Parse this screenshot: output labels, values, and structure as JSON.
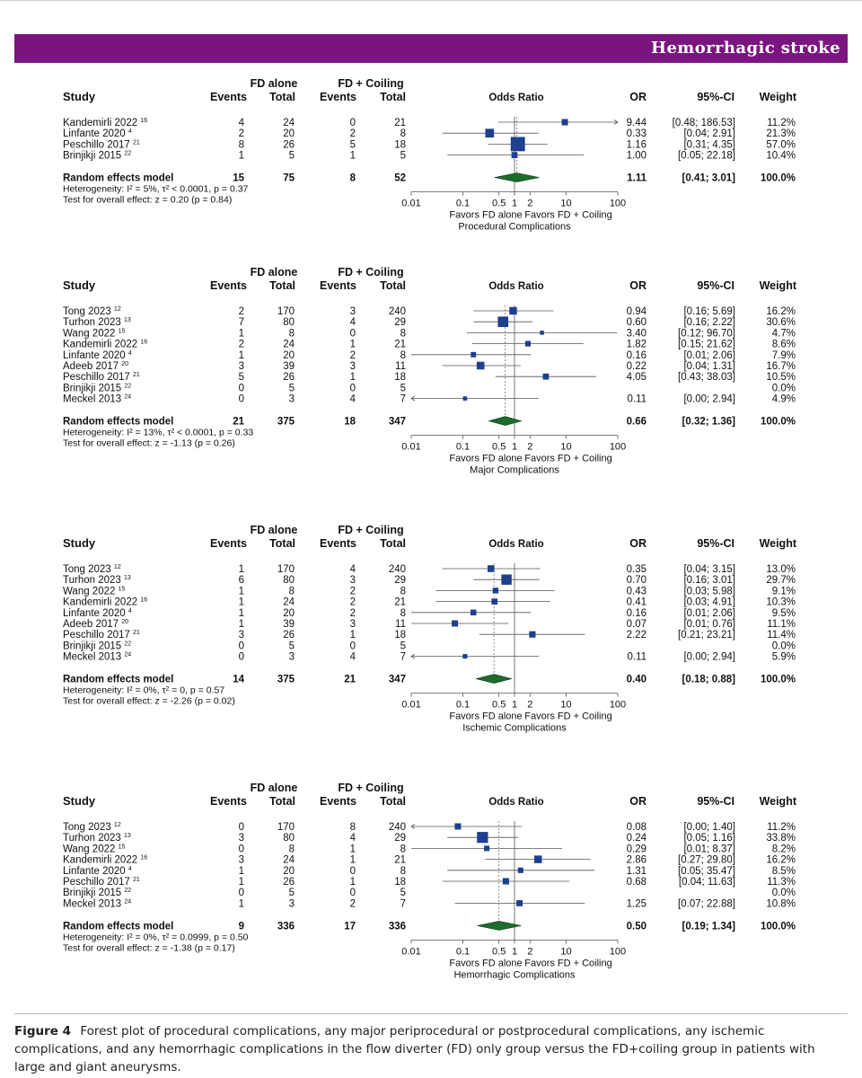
{
  "banner": {
    "title": "Hemorrhagic stroke"
  },
  "caption": {
    "label": "Figure 4",
    "text": "Forest plot of procedural complications, any major periprocedural or postprocedural complications, any ischemic complications, and any hemorrhagic complications in the flow diverter (FD) only group versus the FD+coiling group in patients with large and giant aneurysms."
  },
  "headers": {
    "study": "Study",
    "group_a": "FD alone",
    "group_b": "FD + Coiling",
    "events": "Events",
    "total": "Total",
    "odds_ratio": "Odds Ratio",
    "or": "OR",
    "ci": "95%-CI",
    "weight": "Weight",
    "favors_left": "Favors FD alone",
    "favors_right": "Favors FD + Coiling"
  },
  "colors": {
    "square": "#1f3f8f",
    "diamond": "#1e6b2e",
    "banner": "#7a1580"
  },
  "chart_data": [
    {
      "type": "forest",
      "title": "Procedural Complications",
      "xscale": "log",
      "xlim": [
        0.01,
        100
      ],
      "ticks": [
        "0.01",
        "0.1",
        "0.5",
        "1",
        "2",
        "10",
        "100"
      ],
      "studies": [
        {
          "name": "Kandemirli 2022",
          "ref": "16",
          "e1": 4,
          "t1": 24,
          "e2": 0,
          "t2": 21,
          "or": 9.44,
          "lo": 0.48,
          "hi": 186.53,
          "or_text": "9.44",
          "ci_text": "[0.48; 186.53]",
          "weight": "11.2%"
        },
        {
          "name": "Linfante 2020",
          "ref": "4",
          "e1": 2,
          "t1": 20,
          "e2": 2,
          "t2": 8,
          "or": 0.33,
          "lo": 0.04,
          "hi": 2.91,
          "or_text": "0.33",
          "ci_text": "[0.04;  2.91]",
          "weight": "21.3%"
        },
        {
          "name": "Peschillo 2017",
          "ref": "21",
          "e1": 8,
          "t1": 26,
          "e2": 5,
          "t2": 18,
          "or": 1.16,
          "lo": 0.31,
          "hi": 4.35,
          "or_text": "1.16",
          "ci_text": "[0.31;  4.35]",
          "weight": "57.0%"
        },
        {
          "name": "Brinjikji 2015",
          "ref": "22",
          "e1": 1,
          "t1": 5,
          "e2": 1,
          "t2": 5,
          "or": 1.0,
          "lo": 0.05,
          "hi": 22.18,
          "or_text": "1.00",
          "ci_text": "[0.05; 22.18]",
          "weight": "10.4%"
        }
      ],
      "pooled": {
        "label": "Random effects model",
        "e1": "15",
        "t1": "75",
        "e2": "8",
        "t2": "52",
        "or": 1.11,
        "lo": 0.41,
        "hi": 3.01,
        "or_text": "1.11",
        "ci_text": "[0.41;  3.01]",
        "weight": "100.0%"
      },
      "heterogeneity": "Heterogeneity: I² = 5%, τ² < 0.0001, p = 0.37",
      "overall": "Test for overall effect: z = 0.20 (p = 0.84)"
    },
    {
      "type": "forest",
      "title": "Major Complications",
      "xscale": "log",
      "xlim": [
        0.01,
        100
      ],
      "ticks": [
        "0.01",
        "0.1",
        "0.5",
        "1",
        "2",
        "10",
        "100"
      ],
      "studies": [
        {
          "name": "Tong 2023",
          "ref": "12",
          "e1": 2,
          "t1": 170,
          "e2": 3,
          "t2": 240,
          "or": 0.94,
          "lo": 0.16,
          "hi": 5.69,
          "or_text": "0.94",
          "ci_text": "[0.16;  5.69]",
          "weight": "16.2%"
        },
        {
          "name": "Turhon 2023",
          "ref": "13",
          "e1": 7,
          "t1": 80,
          "e2": 4,
          "t2": 29,
          "or": 0.6,
          "lo": 0.16,
          "hi": 2.22,
          "or_text": "0.60",
          "ci_text": "[0.16;  2.22]",
          "weight": "30.6%"
        },
        {
          "name": "Wang 2022",
          "ref": "15",
          "e1": 1,
          "t1": 8,
          "e2": 0,
          "t2": 8,
          "or": 3.4,
          "lo": 0.12,
          "hi": 96.7,
          "or_text": "3.40",
          "ci_text": "[0.12; 96.70]",
          "weight": "4.7%"
        },
        {
          "name": "Kandemirli 2022",
          "ref": "16",
          "e1": 2,
          "t1": 24,
          "e2": 1,
          "t2": 21,
          "or": 1.82,
          "lo": 0.15,
          "hi": 21.62,
          "or_text": "1.82",
          "ci_text": "[0.15; 21.62]",
          "weight": "8.6%"
        },
        {
          "name": "Linfante 2020",
          "ref": "4",
          "e1": 1,
          "t1": 20,
          "e2": 2,
          "t2": 8,
          "or": 0.16,
          "lo": 0.01,
          "hi": 2.06,
          "or_text": "0.16",
          "ci_text": "[0.01;  2.06]",
          "weight": "7.9%"
        },
        {
          "name": "Adeeb 2017",
          "ref": "20",
          "e1": 3,
          "t1": 39,
          "e2": 3,
          "t2": 11,
          "or": 0.22,
          "lo": 0.04,
          "hi": 1.31,
          "or_text": "0.22",
          "ci_text": "[0.04;  1.31]",
          "weight": "16.7%"
        },
        {
          "name": "Peschillo 2017",
          "ref": "21",
          "e1": 5,
          "t1": 26,
          "e2": 1,
          "t2": 18,
          "or": 4.05,
          "lo": 0.43,
          "hi": 38.03,
          "or_text": "4.05",
          "ci_text": "[0.43; 38.03]",
          "weight": "10.5%"
        },
        {
          "name": "Brinjikji 2015",
          "ref": "22",
          "e1": 0,
          "t1": 5,
          "e2": 0,
          "t2": 5,
          "or": null,
          "lo": null,
          "hi": null,
          "or_text": "",
          "ci_text": "",
          "weight": "0.0%"
        },
        {
          "name": "Meckel 2013",
          "ref": "24",
          "e1": 0,
          "t1": 3,
          "e2": 4,
          "t2": 7,
          "or": 0.11,
          "lo": 0.001,
          "hi": 2.94,
          "or_text": "0.11",
          "ci_text": "[0.00;  2.94]",
          "weight": "4.9%"
        }
      ],
      "pooled": {
        "label": "Random effects model",
        "e1": "21",
        "t1": "375",
        "e2": "18",
        "t2": "347",
        "or": 0.66,
        "lo": 0.32,
        "hi": 1.36,
        "or_text": "0.66",
        "ci_text": "[0.32;  1.36]",
        "weight": "100.0%"
      },
      "heterogeneity": "Heterogeneity: I² = 13%, τ² < 0.0001, p = 0.33",
      "overall": "Test for overall effect: z = -1.13 (p = 0.26)"
    },
    {
      "type": "forest",
      "title": "Ischemic Complications",
      "xscale": "log",
      "xlim": [
        0.01,
        100
      ],
      "ticks": [
        "0.01",
        "0.1",
        "0.5",
        "1",
        "2",
        "10",
        "100"
      ],
      "studies": [
        {
          "name": "Tong 2023",
          "ref": "12",
          "e1": 1,
          "t1": 170,
          "e2": 4,
          "t2": 240,
          "or": 0.35,
          "lo": 0.04,
          "hi": 3.15,
          "or_text": "0.35",
          "ci_text": "[0.04;  3.15]",
          "weight": "13.0%"
        },
        {
          "name": "Turhon 2023",
          "ref": "13",
          "e1": 6,
          "t1": 80,
          "e2": 3,
          "t2": 29,
          "or": 0.7,
          "lo": 0.16,
          "hi": 3.01,
          "or_text": "0.70",
          "ci_text": "[0.16;  3.01]",
          "weight": "29.7%"
        },
        {
          "name": "Wang 2022",
          "ref": "15",
          "e1": 1,
          "t1": 8,
          "e2": 2,
          "t2": 8,
          "or": 0.43,
          "lo": 0.03,
          "hi": 5.98,
          "or_text": "0.43",
          "ci_text": "[0.03;  5.98]",
          "weight": "9.1%"
        },
        {
          "name": "Kandemirli 2022",
          "ref": "16",
          "e1": 1,
          "t1": 24,
          "e2": 2,
          "t2": 21,
          "or": 0.41,
          "lo": 0.03,
          "hi": 4.91,
          "or_text": "0.41",
          "ci_text": "[0.03;  4.91]",
          "weight": "10.3%"
        },
        {
          "name": "Linfante 2020",
          "ref": "4",
          "e1": 1,
          "t1": 20,
          "e2": 2,
          "t2": 8,
          "or": 0.16,
          "lo": 0.01,
          "hi": 2.06,
          "or_text": "0.16",
          "ci_text": "[0.01;  2.06]",
          "weight": "9.5%"
        },
        {
          "name": "Adeeb 2017",
          "ref": "20",
          "e1": 1,
          "t1": 39,
          "e2": 3,
          "t2": 11,
          "or": 0.07,
          "lo": 0.01,
          "hi": 0.76,
          "or_text": "0.07",
          "ci_text": "[0.01;  0.76]",
          "weight": "11.1%"
        },
        {
          "name": "Peschillo 2017",
          "ref": "21",
          "e1": 3,
          "t1": 26,
          "e2": 1,
          "t2": 18,
          "or": 2.22,
          "lo": 0.21,
          "hi": 23.21,
          "or_text": "2.22",
          "ci_text": "[0.21; 23.21]",
          "weight": "11.4%"
        },
        {
          "name": "Brinjikji 2015",
          "ref": "22",
          "e1": 0,
          "t1": 5,
          "e2": 0,
          "t2": 5,
          "or": null,
          "lo": null,
          "hi": null,
          "or_text": "",
          "ci_text": "",
          "weight": "0.0%"
        },
        {
          "name": "Meckel 2013",
          "ref": "24",
          "e1": 0,
          "t1": 3,
          "e2": 4,
          "t2": 7,
          "or": 0.11,
          "lo": 0.001,
          "hi": 2.94,
          "or_text": "0.11",
          "ci_text": "[0.00;  2.94]",
          "weight": "5.9%"
        }
      ],
      "pooled": {
        "label": "Random effects model",
        "e1": "14",
        "t1": "375",
        "e2": "21",
        "t2": "347",
        "or": 0.4,
        "lo": 0.18,
        "hi": 0.88,
        "or_text": "0.40",
        "ci_text": "[0.18;  0.88]",
        "weight": "100.0%"
      },
      "heterogeneity": "Heterogeneity: I² = 0%, τ² = 0, p = 0.57",
      "overall": "Test for overall effect: z = -2.26 (p = 0.02)"
    },
    {
      "type": "forest",
      "title": "Hemorrhagic Complications",
      "xscale": "log",
      "xlim": [
        0.01,
        100
      ],
      "ticks": [
        "0.01",
        "0.1",
        "0.5",
        "1",
        "2",
        "10",
        "100"
      ],
      "studies": [
        {
          "name": "Tong 2023",
          "ref": "12",
          "e1": 0,
          "t1": 170,
          "e2": 8,
          "t2": 240,
          "or": 0.08,
          "lo": 0.001,
          "hi": 1.4,
          "or_text": "0.08",
          "ci_text": "[0.00;  1.40]",
          "weight": "11.2%"
        },
        {
          "name": "Turhon 2023",
          "ref": "13",
          "e1": 3,
          "t1": 80,
          "e2": 4,
          "t2": 29,
          "or": 0.24,
          "lo": 0.05,
          "hi": 1.16,
          "or_text": "0.24",
          "ci_text": "[0.05;  1.16]",
          "weight": "33.8%"
        },
        {
          "name": "Wang 2022",
          "ref": "15",
          "e1": 0,
          "t1": 8,
          "e2": 1,
          "t2": 8,
          "or": 0.29,
          "lo": 0.01,
          "hi": 8.37,
          "or_text": "0.29",
          "ci_text": "[0.01;  8.37]",
          "weight": "8.2%"
        },
        {
          "name": "Kandemirli 2022",
          "ref": "16",
          "e1": 3,
          "t1": 24,
          "e2": 1,
          "t2": 21,
          "or": 2.86,
          "lo": 0.27,
          "hi": 29.8,
          "or_text": "2.86",
          "ci_text": "[0.27; 29.80]",
          "weight": "16.2%"
        },
        {
          "name": "Linfante 2020",
          "ref": "4",
          "e1": 1,
          "t1": 20,
          "e2": 0,
          "t2": 8,
          "or": 1.31,
          "lo": 0.05,
          "hi": 35.47,
          "or_text": "1.31",
          "ci_text": "[0.05; 35.47]",
          "weight": "8.5%"
        },
        {
          "name": "Peschillo 2017",
          "ref": "21",
          "e1": 1,
          "t1": 26,
          "e2": 1,
          "t2": 18,
          "or": 0.68,
          "lo": 0.04,
          "hi": 11.63,
          "or_text": "0.68",
          "ci_text": "[0.04; 11.63]",
          "weight": "11.3%"
        },
        {
          "name": "Brinjikji 2015",
          "ref": "22",
          "e1": 0,
          "t1": 5,
          "e2": 0,
          "t2": 5,
          "or": null,
          "lo": null,
          "hi": null,
          "or_text": "",
          "ci_text": "",
          "weight": "0.0%"
        },
        {
          "name": "Meckel 2013",
          "ref": "24",
          "e1": 1,
          "t1": 3,
          "e2": 2,
          "t2": 7,
          "or": 1.25,
          "lo": 0.07,
          "hi": 22.88,
          "or_text": "1.25",
          "ci_text": "[0.07; 22.88]",
          "weight": "10.8%"
        }
      ],
      "pooled": {
        "label": "Random effects model",
        "e1": "9",
        "t1": "336",
        "e2": "17",
        "t2": "336",
        "or": 0.5,
        "lo": 0.19,
        "hi": 1.34,
        "or_text": "0.50",
        "ci_text": "[0.19;  1.34]",
        "weight": "100.0%"
      },
      "heterogeneity": "Heterogeneity: I² = 0%, τ² = 0.0999, p = 0.50",
      "overall": "Test for overall effect: z = -1.38 (p = 0.17)"
    }
  ]
}
